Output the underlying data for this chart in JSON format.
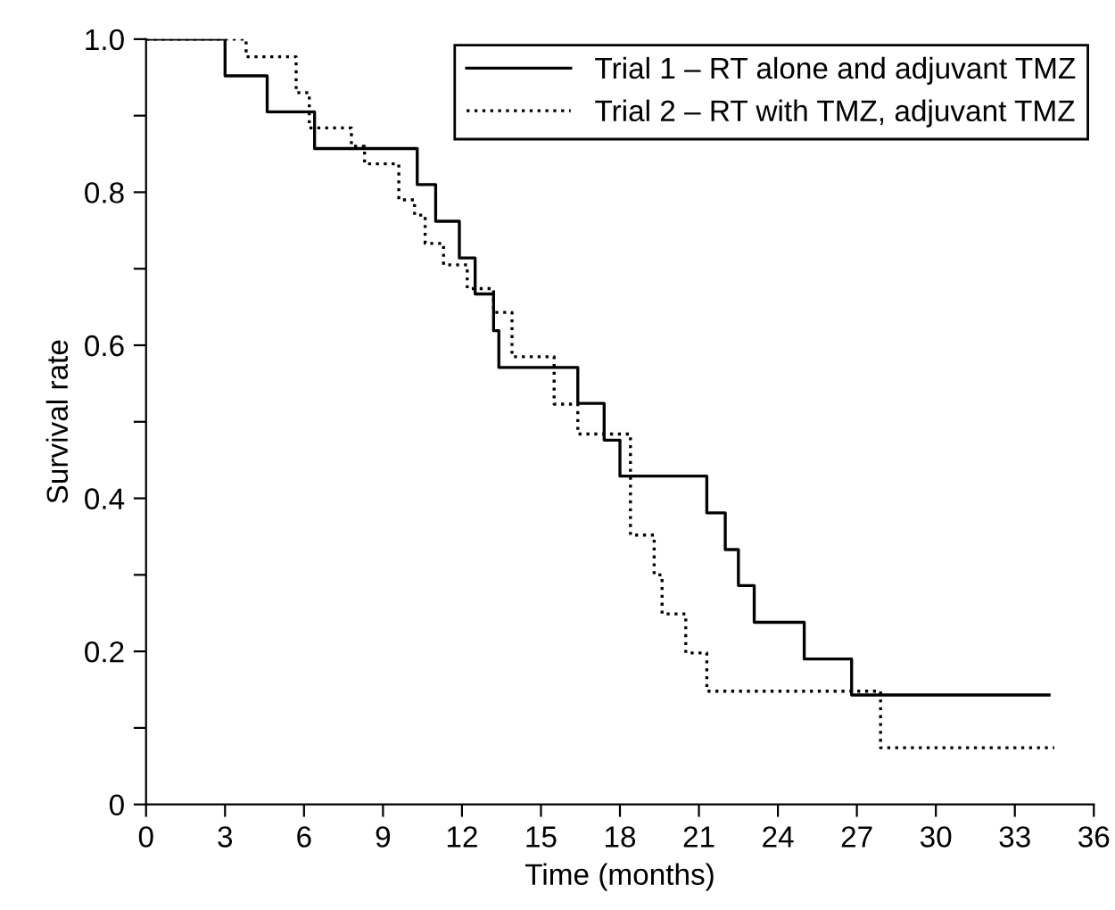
{
  "chart_data": {
    "type": "step",
    "xlabel": "Time (months)",
    "ylabel": "Survival rate",
    "xlim": [
      0,
      36
    ],
    "xticks": [
      0,
      3,
      6,
      9,
      12,
      15,
      18,
      21,
      24,
      27,
      30,
      33,
      36
    ],
    "ylim": [
      0,
      1
    ],
    "yticks": [
      0,
      {
        "value": 0.1,
        "label": null
      },
      0.2,
      {
        "value": 0.3,
        "label": null
      },
      0.4,
      {
        "value": 0.5,
        "label": null
      },
      0.6,
      {
        "value": 0.7,
        "label": null
      },
      0.8,
      {
        "value": 0.9,
        "label": null
      },
      {
        "value": 1,
        "label": "1.0"
      }
    ],
    "grid": false,
    "legend": "top right",
    "marker": "none",
    "series": [
      {
        "name": "Trial 1 – RT alone and adjuvant TMZ",
        "color": "#000000",
        "line_style": "solid",
        "x": [
          0,
          3,
          4.6,
          6.4,
          10.3,
          11,
          11.9,
          12.5,
          13.2,
          13.4,
          16.4,
          17.4,
          18,
          21.3,
          22,
          22.5,
          23.1,
          25,
          26.8,
          34.3
        ],
        "values": [
          1,
          0.952,
          0.905,
          0.857,
          0.81,
          0.762,
          0.714,
          0.667,
          0.619,
          0.571,
          0.524,
          0.476,
          0.429,
          0.381,
          0.333,
          0.286,
          0.238,
          0.19,
          0.143,
          0.143
        ]
      },
      {
        "name": "Trial 2 – RT with TMZ, adjuvant TMZ",
        "color": "#000000",
        "line_style": "dotted",
        "x": [
          0,
          3.8,
          5.7,
          6.2,
          7.8,
          8.3,
          9.6,
          10.2,
          10.6,
          11.3,
          12.2,
          13.2,
          13.9,
          15.5,
          16.4,
          18.4,
          19.3,
          19.6,
          20.5,
          21.3,
          27.9,
          34.5
        ],
        "values": [
          1,
          0.977,
          0.93,
          0.884,
          0.86,
          0.837,
          0.79,
          0.77,
          0.733,
          0.705,
          0.674,
          0.643,
          0.585,
          0.523,
          0.484,
          0.352,
          0.3,
          0.249,
          0.198,
          0.148,
          0.074,
          0.074
        ]
      }
    ]
  }
}
